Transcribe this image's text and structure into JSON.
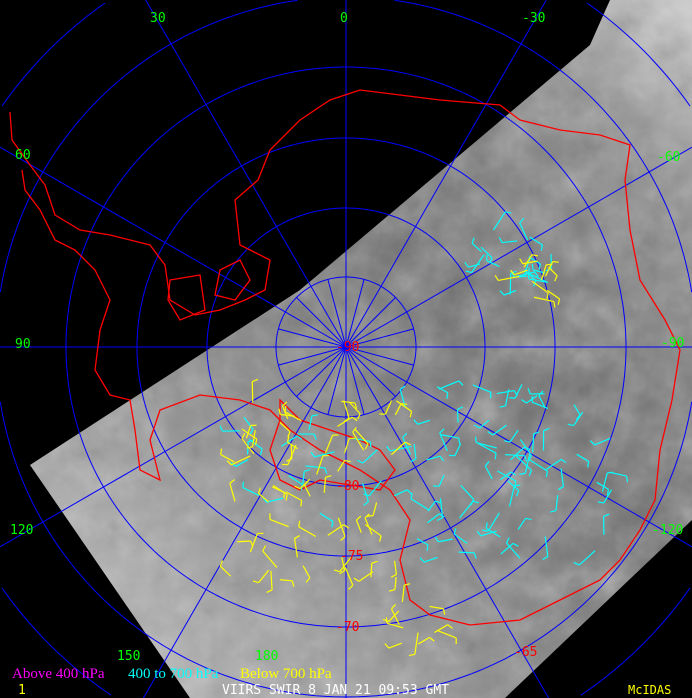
{
  "title": "VIIRS SWIR 8 JAN 21 09:53 GMT",
  "frame_number": "1",
  "brand": "McIDAS",
  "projection": "polar-stereographic-south",
  "legend": [
    {
      "label": "Above 400 hPa",
      "color": "#ff00ff"
    },
    {
      "label": "400 to 700 hPa",
      "color": "#00ffff"
    },
    {
      "label": "Below 700 hPa",
      "color": "#ffff00"
    }
  ],
  "longitude_labels": [
    "0",
    "30",
    "-30",
    "60",
    "-60",
    "90",
    "-90",
    "120",
    "-120",
    "150",
    "180"
  ],
  "latitude_labels": [
    "-90",
    "-80",
    "-75",
    "-70",
    "-65"
  ],
  "colors": {
    "grid": "#0000ff",
    "coastline": "#ff0000",
    "lon_label": "#00ff00",
    "lat_label": "#ff0000",
    "background": "#000000"
  }
}
